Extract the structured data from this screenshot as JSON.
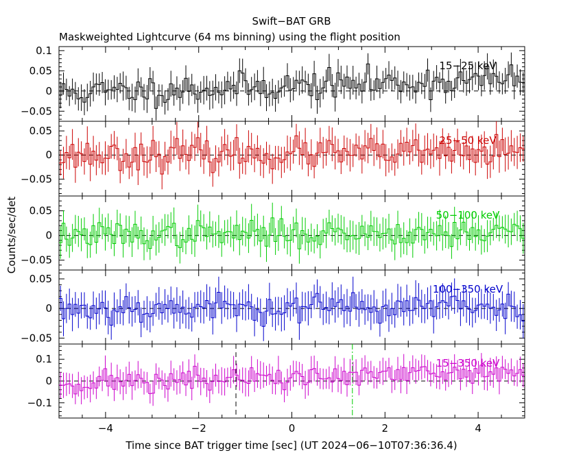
{
  "chart_data": {
    "type": "line",
    "title": "Swift−BAT GRB",
    "subtitle": "Maskweighted Lightcurve (64 ms binning) using the flight position",
    "xlabel": "Time since BAT trigger time [sec] (UT 2024−06−10T07:36:36.4)",
    "ylabel": "Counts/sec/det",
    "xlim": [
      -5.0,
      5.0
    ],
    "x_ticks": [
      "−4",
      "−2",
      "0",
      "2",
      "4"
    ],
    "x_tick_values": [
      -4,
      -2,
      0,
      2,
      4
    ],
    "bin_width_s": 0.064,
    "markers": [
      {
        "name": "black-dashed",
        "x": -1.2,
        "color": "#000000",
        "panel": 4
      },
      {
        "name": "green-dashdot",
        "x": 1.3,
        "color": "#00cc00",
        "panel": 4
      }
    ],
    "panels": [
      {
        "band": "15−25 keV",
        "color": "#000000",
        "ylim": [
          -0.075,
          0.11
        ],
        "y_ticks": [
          "−0.05",
          "0",
          "0.05",
          "0.1"
        ],
        "y_tick_values": [
          -0.05,
          0,
          0.05,
          0.1
        ],
        "noise_sigma": 0.03,
        "trend": [
          -0.005,
          0.03
        ],
        "errbar": 0.03,
        "seed": 11
      },
      {
        "band": "25−50 keV",
        "color": "#cc0000",
        "ylim": [
          -0.085,
          0.07
        ],
        "y_ticks": [
          "−0.05",
          "0",
          "0.05"
        ],
        "y_tick_values": [
          -0.05,
          0,
          0.05
        ],
        "noise_sigma": 0.025,
        "trend": [
          0.0,
          0.005
        ],
        "errbar": 0.03,
        "seed": 23
      },
      {
        "band": "50−100 keV",
        "color": "#00cc00",
        "ylim": [
          -0.07,
          0.08
        ],
        "y_ticks": [
          "−0.05",
          "0",
          "0.05"
        ],
        "y_tick_values": [
          -0.05,
          0,
          0.05
        ],
        "noise_sigma": 0.022,
        "trend": [
          0.0,
          0.008
        ],
        "errbar": 0.028,
        "seed": 37
      },
      {
        "band": "100−350 keV",
        "color": "#0000cc",
        "ylim": [
          -0.06,
          0.065
        ],
        "y_ticks": [
          "−0.05",
          "0",
          "0.05"
        ],
        "y_tick_values": [
          -0.05,
          0,
          0.05
        ],
        "noise_sigma": 0.02,
        "trend": [
          0.0,
          0.004
        ],
        "errbar": 0.025,
        "seed": 53
      },
      {
        "band": "15−350 keV",
        "color": "#cc00cc",
        "ylim": [
          -0.17,
          0.17
        ],
        "y_ticks": [
          "−0.1",
          "0",
          "0.1"
        ],
        "y_tick_values": [
          -0.1,
          0,
          0.1
        ],
        "noise_sigma": 0.045,
        "trend": [
          -0.01,
          0.04
        ],
        "errbar": 0.055,
        "seed": 71
      }
    ]
  }
}
